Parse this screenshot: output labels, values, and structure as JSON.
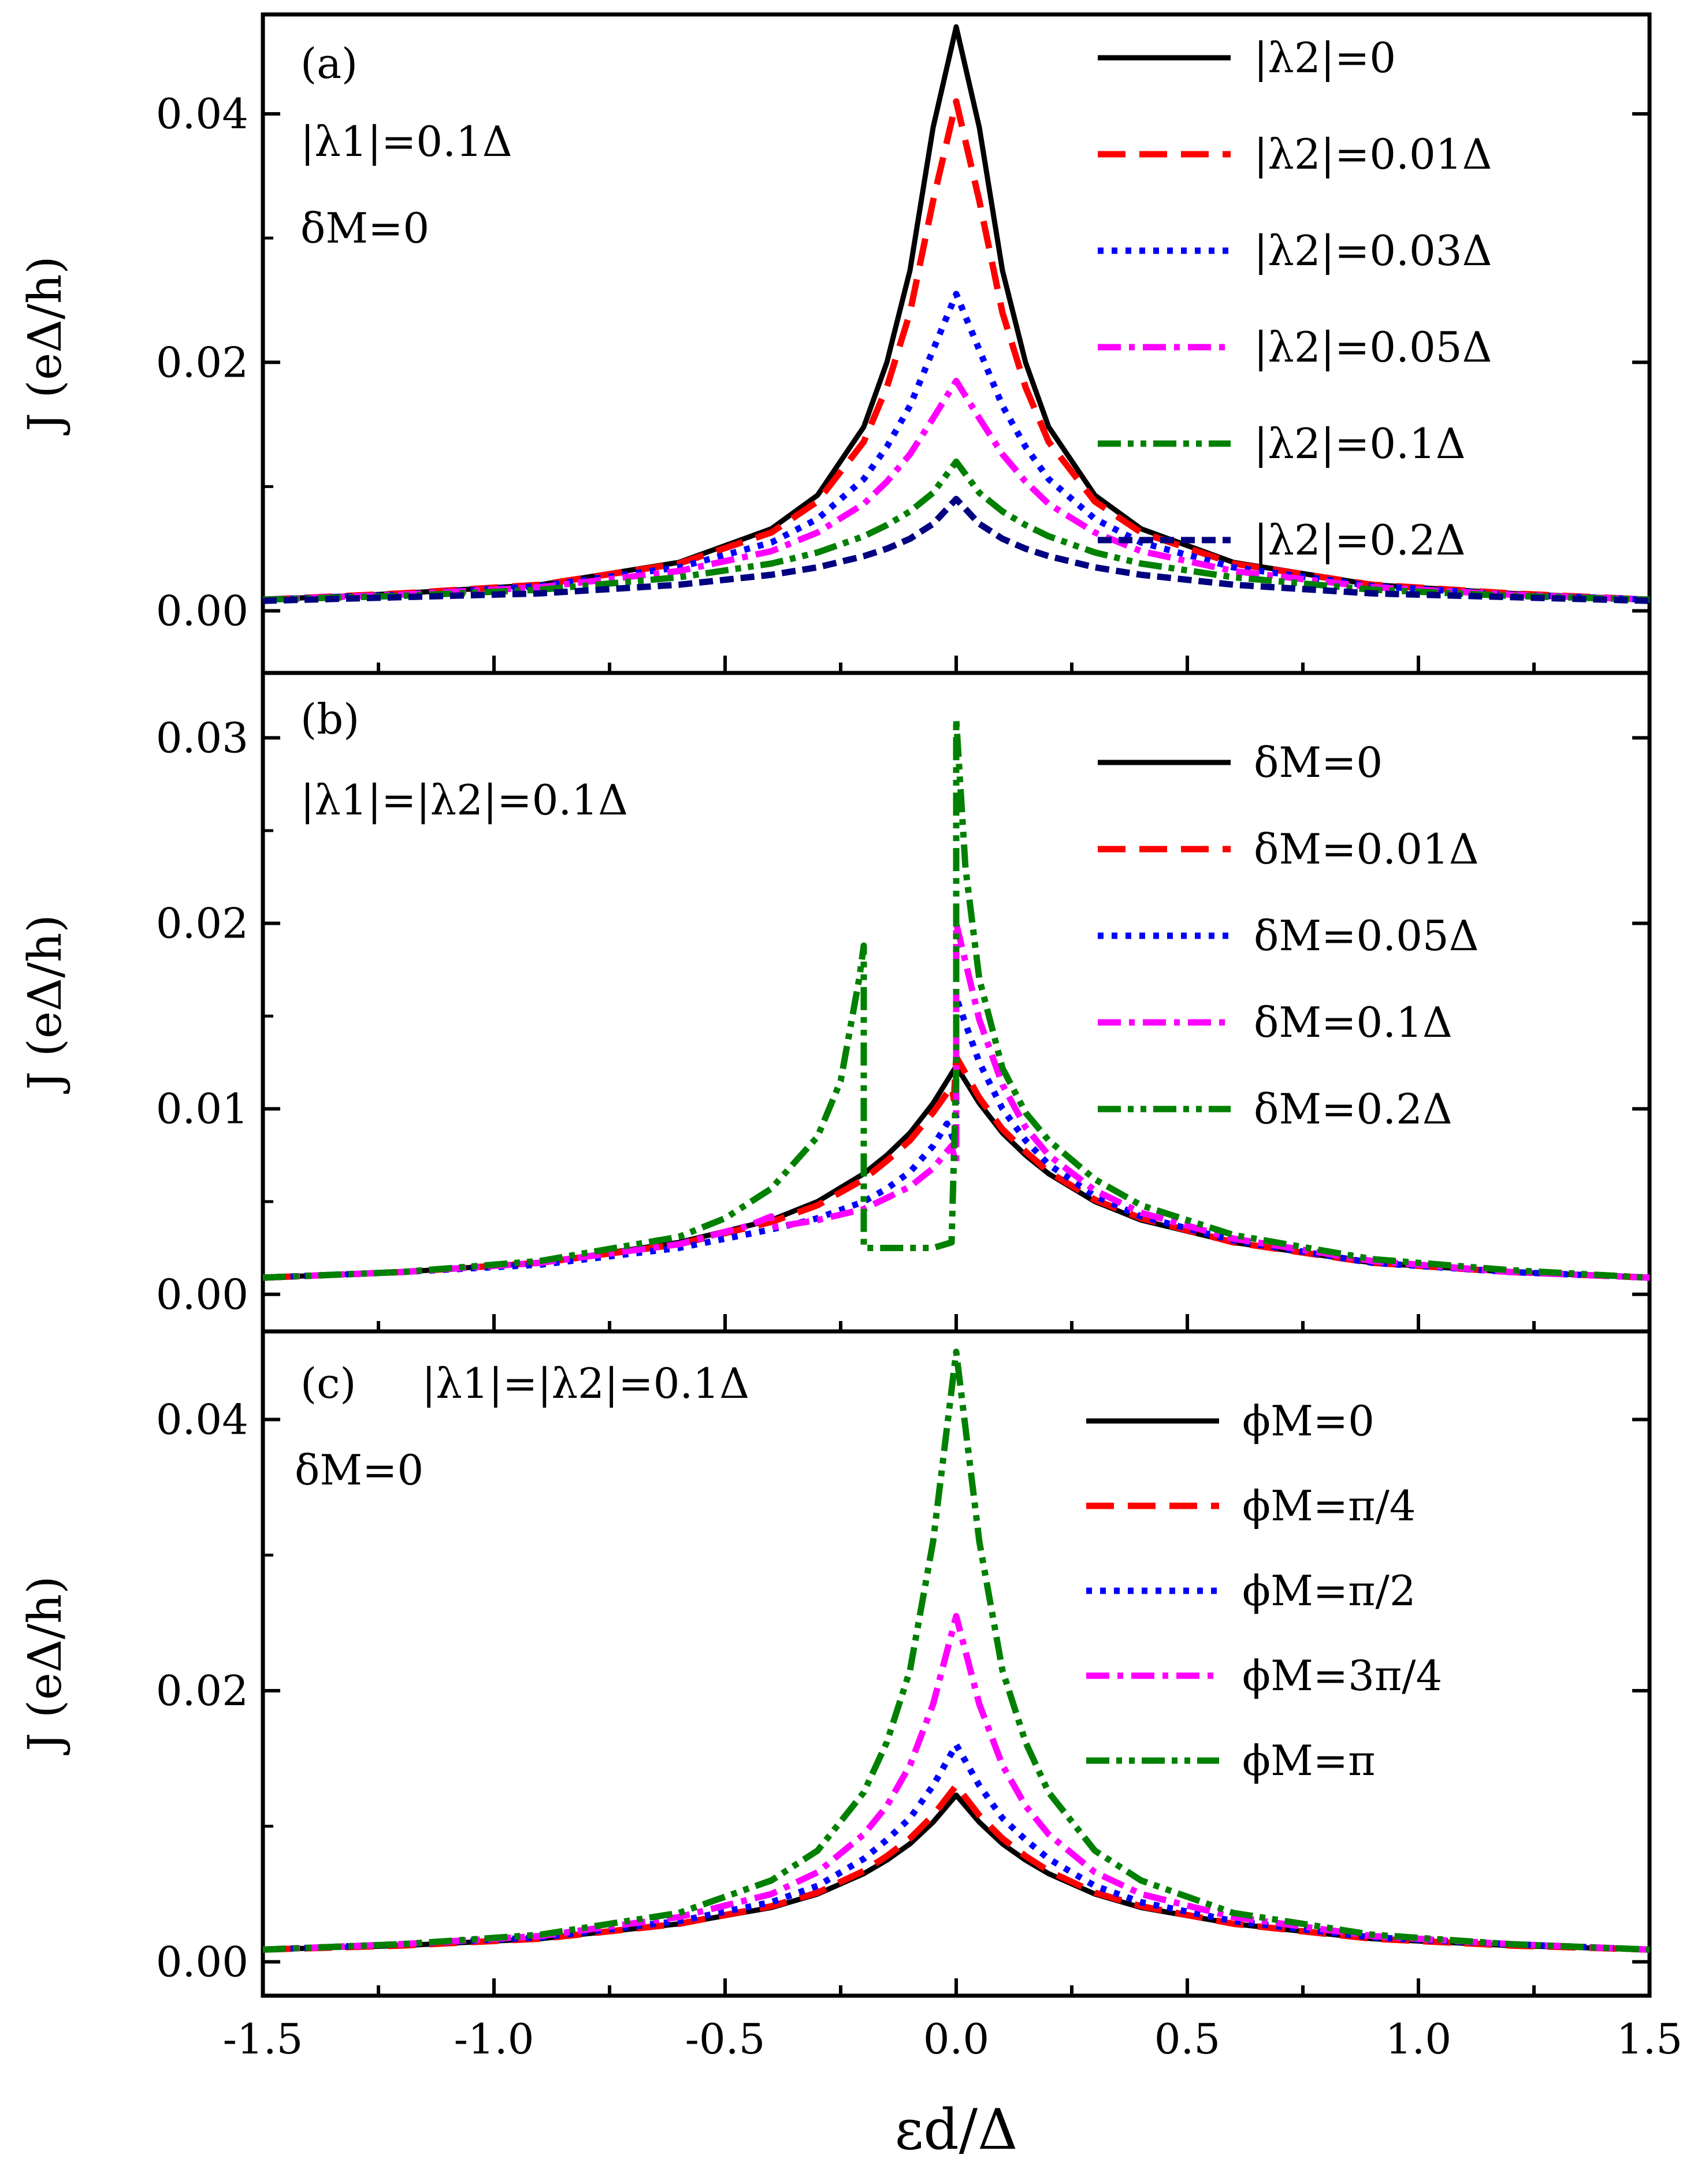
{
  "figure": {
    "xlabel": "εd/Δ",
    "xticks": [
      "-1.5",
      "-1.0",
      "-0.5",
      "0.0",
      "0.5",
      "1.0",
      "1.5"
    ],
    "xlim": [
      -1.5,
      1.5
    ]
  },
  "chart_data": [
    {
      "type": "line",
      "panel": "a",
      "ylabel": "J (eΔ/h)",
      "ylim": [
        -0.005,
        0.048
      ],
      "yticks": [
        "0.00",
        "0.02",
        "0.04"
      ],
      "annotations": [
        "(a)",
        "|λ1|=0.1Δ",
        "δM=0"
      ],
      "series": [
        {
          "name": "|λ2|=0",
          "color": "#000000",
          "style": "solid",
          "x": [
            -1.5,
            -1.2,
            -0.9,
            -0.6,
            -0.4,
            -0.3,
            -0.2,
            -0.15,
            -0.1,
            -0.05,
            0.0,
            0.05,
            0.1,
            0.15,
            0.2,
            0.3,
            0.4,
            0.6,
            0.9,
            1.2,
            1.5
          ],
          "y": [
            0.0009,
            0.0014,
            0.0021,
            0.0039,
            0.0066,
            0.0093,
            0.0148,
            0.02,
            0.0274,
            0.0389,
            0.047,
            0.0389,
            0.0274,
            0.02,
            0.0148,
            0.0093,
            0.0066,
            0.0039,
            0.0021,
            0.0014,
            0.0009
          ]
        },
        {
          "name": "|λ2|=0.01Δ",
          "color": "#ff0000",
          "style": "dash",
          "x": [
            -1.5,
            -1.2,
            -0.9,
            -0.6,
            -0.4,
            -0.3,
            -0.2,
            -0.15,
            -0.1,
            -0.05,
            0.0,
            0.05,
            0.1,
            0.15,
            0.2,
            0.3,
            0.4,
            0.6,
            0.9,
            1.2,
            1.5
          ],
          "y": [
            0.0009,
            0.0014,
            0.0021,
            0.0038,
            0.0063,
            0.0088,
            0.0136,
            0.018,
            0.024,
            0.033,
            0.041,
            0.033,
            0.024,
            0.018,
            0.0136,
            0.0088,
            0.0063,
            0.0038,
            0.0021,
            0.0014,
            0.0009
          ]
        },
        {
          "name": "|λ2|=0.03Δ",
          "color": "#0000ff",
          "style": "dot",
          "x": [
            -1.5,
            -1.2,
            -0.9,
            -0.6,
            -0.4,
            -0.3,
            -0.2,
            -0.15,
            -0.1,
            -0.05,
            0.0,
            0.05,
            0.1,
            0.15,
            0.2,
            0.3,
            0.4,
            0.6,
            0.9,
            1.2,
            1.5
          ],
          "y": [
            0.0009,
            0.0013,
            0.002,
            0.0035,
            0.0055,
            0.0074,
            0.0106,
            0.0132,
            0.0165,
            0.021,
            0.0255,
            0.021,
            0.0165,
            0.0132,
            0.0106,
            0.0074,
            0.0055,
            0.0035,
            0.002,
            0.0013,
            0.0009
          ]
        },
        {
          "name": "|λ2|=0.05Δ",
          "color": "#ff00ff",
          "style": "dashdot",
          "x": [
            -1.5,
            -1.2,
            -0.9,
            -0.6,
            -0.4,
            -0.3,
            -0.2,
            -0.15,
            -0.1,
            -0.05,
            0.0,
            0.05,
            0.1,
            0.15,
            0.2,
            0.3,
            0.4,
            0.6,
            0.9,
            1.2,
            1.5
          ],
          "y": [
            0.0009,
            0.0013,
            0.0019,
            0.0032,
            0.0048,
            0.0063,
            0.0086,
            0.0104,
            0.0126,
            0.0155,
            0.0185,
            0.0155,
            0.0126,
            0.0104,
            0.0086,
            0.0063,
            0.0048,
            0.0032,
            0.0019,
            0.0013,
            0.0009
          ]
        },
        {
          "name": "|λ2|=0.1Δ",
          "color": "#008000",
          "style": "dashdotdot",
          "x": [
            -1.5,
            -1.2,
            -0.9,
            -0.6,
            -0.4,
            -0.3,
            -0.2,
            -0.15,
            -0.1,
            -0.05,
            0.0,
            0.05,
            0.1,
            0.15,
            0.2,
            0.3,
            0.4,
            0.6,
            0.9,
            1.2,
            1.5
          ],
          "y": [
            0.0009,
            0.0012,
            0.0017,
            0.0027,
            0.0038,
            0.0047,
            0.006,
            0.0069,
            0.008,
            0.0095,
            0.012,
            0.0095,
            0.008,
            0.0069,
            0.006,
            0.0047,
            0.0038,
            0.0027,
            0.0017,
            0.0012,
            0.0009
          ]
        },
        {
          "name": "|λ2|=0.2Δ",
          "color": "#000080",
          "style": "shortdash",
          "x": [
            -1.5,
            -1.2,
            -0.9,
            -0.6,
            -0.4,
            -0.3,
            -0.2,
            -0.15,
            -0.1,
            -0.05,
            0.0,
            0.05,
            0.1,
            0.15,
            0.2,
            0.3,
            0.4,
            0.6,
            0.9,
            1.2,
            1.5
          ],
          "y": [
            0.0008,
            0.0011,
            0.0014,
            0.0021,
            0.0029,
            0.0035,
            0.0044,
            0.005,
            0.0058,
            0.007,
            0.009,
            0.007,
            0.0058,
            0.005,
            0.0044,
            0.0035,
            0.0029,
            0.0021,
            0.0014,
            0.0011,
            0.0008
          ]
        }
      ]
    },
    {
      "type": "line",
      "panel": "b",
      "ylabel": "J (eΔ/h)",
      "ylim": [
        -0.002,
        0.0335
      ],
      "yticks": [
        "0.00",
        "0.01",
        "0.02",
        "0.03"
      ],
      "annotations": [
        "(b)",
        "|λ1|=|λ2|=0.1Δ"
      ],
      "series": [
        {
          "name": "δM=0",
          "color": "#000000",
          "style": "solid",
          "x": [
            -1.5,
            -1.2,
            -0.9,
            -0.6,
            -0.4,
            -0.3,
            -0.2,
            -0.15,
            -0.1,
            -0.05,
            0.0,
            0.05,
            0.1,
            0.15,
            0.2,
            0.3,
            0.4,
            0.6,
            0.9,
            1.2,
            1.5
          ],
          "y": [
            0.0009,
            0.0012,
            0.0017,
            0.0028,
            0.004,
            0.005,
            0.0065,
            0.0075,
            0.0087,
            0.0103,
            0.0123,
            0.0103,
            0.0087,
            0.0075,
            0.0065,
            0.005,
            0.004,
            0.0028,
            0.0017,
            0.0012,
            0.0009
          ]
        },
        {
          "name": "δM=0.01Δ",
          "color": "#ff0000",
          "style": "dash",
          "x": [
            -1.5,
            -1.2,
            -0.9,
            -0.6,
            -0.4,
            -0.3,
            -0.2,
            -0.15,
            -0.1,
            -0.05,
            -0.01,
            -0.005,
            0.0,
            0.05,
            0.1,
            0.15,
            0.2,
            0.3,
            0.4,
            0.6,
            0.9,
            1.2,
            1.5
          ],
          "y": [
            0.0009,
            0.0012,
            0.0017,
            0.0027,
            0.0039,
            0.0048,
            0.0062,
            0.0072,
            0.0083,
            0.0098,
            0.0112,
            0.0105,
            0.0128,
            0.0106,
            0.0089,
            0.0077,
            0.0066,
            0.0051,
            0.0041,
            0.0028,
            0.0017,
            0.0012,
            0.0009
          ]
        },
        {
          "name": "δM=0.05Δ",
          "color": "#0000ff",
          "style": "dot",
          "x": [
            -1.5,
            -1.2,
            -0.9,
            -0.6,
            -0.4,
            -0.3,
            -0.2,
            -0.15,
            -0.1,
            -0.05,
            -0.02,
            0.0,
            0.0,
            0.05,
            0.1,
            0.15,
            0.2,
            0.3,
            0.4,
            0.6,
            0.9,
            1.2,
            1.5
          ],
          "y": [
            0.0009,
            0.0012,
            0.0016,
            0.0025,
            0.0035,
            0.0041,
            0.005,
            0.0057,
            0.0066,
            0.008,
            0.0092,
            0.008,
            0.016,
            0.0125,
            0.01,
            0.0083,
            0.007,
            0.0053,
            0.0042,
            0.0029,
            0.0017,
            0.0012,
            0.0009
          ]
        },
        {
          "name": "δM=0.1Δ",
          "color": "#ff00ff",
          "style": "dashdot",
          "x": [
            -1.5,
            -1.2,
            -0.9,
            -0.6,
            -0.45,
            -0.4,
            -0.4,
            -0.3,
            -0.2,
            -0.1,
            -0.05,
            -0.01,
            0.0,
            0.0,
            0.05,
            0.1,
            0.15,
            0.2,
            0.3,
            0.4,
            0.6,
            0.9,
            1.2,
            1.5
          ],
          "y": [
            0.0009,
            0.0012,
            0.0017,
            0.0027,
            0.0037,
            0.0042,
            0.0036,
            0.004,
            0.0046,
            0.0058,
            0.0068,
            0.008,
            0.007,
            0.02,
            0.0148,
            0.0113,
            0.009,
            0.0075,
            0.0056,
            0.0044,
            0.003,
            0.0018,
            0.0012,
            0.0009
          ]
        },
        {
          "name": "δM=0.2Δ",
          "color": "#008000",
          "style": "dashdotdot",
          "x": [
            -1.5,
            -1.2,
            -0.9,
            -0.6,
            -0.5,
            -0.4,
            -0.3,
            -0.25,
            -0.21,
            -0.2,
            -0.2,
            -0.15,
            -0.1,
            -0.05,
            -0.01,
            0.0,
            0.0,
            0.02,
            0.05,
            0.1,
            0.15,
            0.2,
            0.3,
            0.4,
            0.6,
            0.9,
            1.2,
            1.5
          ],
          "y": [
            0.0009,
            0.0012,
            0.0018,
            0.0031,
            0.0041,
            0.0057,
            0.0085,
            0.0115,
            0.017,
            0.0188,
            0.0025,
            0.0025,
            0.0025,
            0.0025,
            0.0028,
            0.012,
            0.031,
            0.023,
            0.017,
            0.0122,
            0.0098,
            0.0083,
            0.0062,
            0.0048,
            0.0032,
            0.0019,
            0.0013,
            0.0009
          ]
        }
      ]
    },
    {
      "type": "line",
      "panel": "c",
      "ylabel": "J (eΔ/h)",
      "ylim": [
        -0.0025,
        0.0465
      ],
      "yticks": [
        "0.00",
        "0.02",
        "0.04"
      ],
      "annotations": [
        "(c)",
        "|λ1|=|λ2|=0.1Δ",
        "δM=0"
      ],
      "series": [
        {
          "name": "ϕM=0",
          "color": "#000000",
          "style": "solid",
          "x": [
            -1.5,
            -1.2,
            -0.9,
            -0.6,
            -0.4,
            -0.3,
            -0.2,
            -0.15,
            -0.1,
            -0.05,
            0.0,
            0.05,
            0.1,
            0.15,
            0.2,
            0.3,
            0.4,
            0.6,
            0.9,
            1.2,
            1.5
          ],
          "y": [
            0.0009,
            0.0012,
            0.0017,
            0.0028,
            0.004,
            0.005,
            0.0065,
            0.0075,
            0.0087,
            0.0103,
            0.0123,
            0.0103,
            0.0087,
            0.0075,
            0.0065,
            0.005,
            0.004,
            0.0028,
            0.0017,
            0.0012,
            0.0009
          ]
        },
        {
          "name": "ϕM=π/4",
          "color": "#ff0000",
          "style": "dash",
          "x": [
            -1.5,
            -1.2,
            -0.9,
            -0.6,
            -0.4,
            -0.3,
            -0.2,
            -0.15,
            -0.1,
            -0.05,
            0.0,
            0.05,
            0.1,
            0.15,
            0.2,
            0.3,
            0.4,
            0.6,
            0.9,
            1.2,
            1.5
          ],
          "y": [
            0.0009,
            0.0012,
            0.0017,
            0.0028,
            0.0041,
            0.0051,
            0.0067,
            0.0078,
            0.0091,
            0.0108,
            0.013,
            0.0108,
            0.0091,
            0.0078,
            0.0067,
            0.0051,
            0.0041,
            0.0028,
            0.0017,
            0.0012,
            0.0009
          ]
        },
        {
          "name": "ϕM=π/2",
          "color": "#0000ff",
          "style": "dot",
          "x": [
            -1.5,
            -1.2,
            -0.9,
            -0.6,
            -0.4,
            -0.3,
            -0.2,
            -0.15,
            -0.1,
            -0.05,
            0.0,
            0.05,
            0.1,
            0.15,
            0.2,
            0.3,
            0.4,
            0.6,
            0.9,
            1.2,
            1.5
          ],
          "y": [
            0.0009,
            0.0013,
            0.0018,
            0.003,
            0.0044,
            0.0056,
            0.0076,
            0.009,
            0.0106,
            0.013,
            0.016,
            0.013,
            0.0106,
            0.009,
            0.0076,
            0.0056,
            0.0044,
            0.003,
            0.0018,
            0.0013,
            0.0009
          ]
        },
        {
          "name": "ϕM=3π/4",
          "color": "#ff00ff",
          "style": "dashdot",
          "x": [
            -1.5,
            -1.2,
            -0.9,
            -0.6,
            -0.4,
            -0.3,
            -0.2,
            -0.15,
            -0.1,
            -0.05,
            0.0,
            0.05,
            0.1,
            0.15,
            0.2,
            0.3,
            0.4,
            0.6,
            0.9,
            1.2,
            1.5
          ],
          "y": [
            0.0009,
            0.0013,
            0.0019,
            0.0033,
            0.005,
            0.0066,
            0.0094,
            0.0115,
            0.0145,
            0.019,
            0.0255,
            0.019,
            0.0145,
            0.0115,
            0.0094,
            0.0066,
            0.005,
            0.0033,
            0.0019,
            0.0013,
            0.0009
          ]
        },
        {
          "name": "ϕM=π",
          "color": "#008000",
          "style": "dashdotdot",
          "x": [
            -1.5,
            -1.2,
            -0.9,
            -0.6,
            -0.4,
            -0.3,
            -0.2,
            -0.15,
            -0.1,
            -0.05,
            0.0,
            0.05,
            0.1,
            0.15,
            0.2,
            0.3,
            0.4,
            0.6,
            0.9,
            1.2,
            1.5
          ],
          "y": [
            0.0009,
            0.0013,
            0.002,
            0.0036,
            0.006,
            0.0082,
            0.0125,
            0.0162,
            0.0215,
            0.031,
            0.045,
            0.031,
            0.0215,
            0.0162,
            0.0125,
            0.0082,
            0.006,
            0.0036,
            0.002,
            0.0013,
            0.0009
          ]
        }
      ]
    }
  ]
}
